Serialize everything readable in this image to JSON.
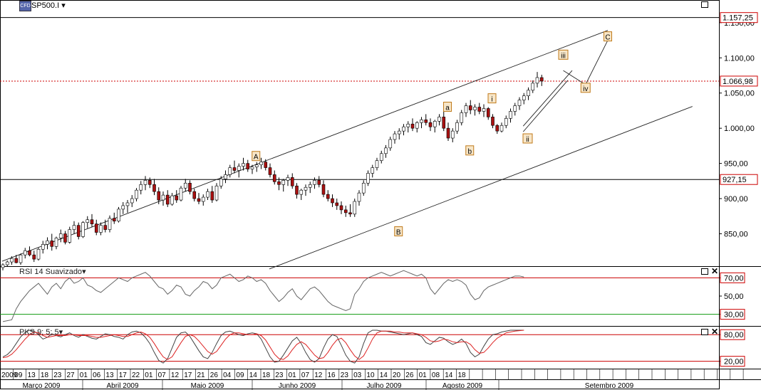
{
  "header": {
    "instrument": "SP500.I",
    "logo": "CFD",
    "dropdown_icon": "chevron-down-icon"
  },
  "indicators": {
    "rsi_title": "RSI 14 Suavizado",
    "pks_title": "PKS 9; 5; 5"
  },
  "price_labels": {
    "resistance": "1.157,25",
    "last": "1.066,98",
    "support": "927,15"
  },
  "colors": {
    "up": "#ffffff",
    "down": "#aa1111",
    "grid": "#000000",
    "last_line": "#cc0000",
    "rsi_line": "#666666",
    "pks_k": "#444444",
    "pks_d": "#dd2222",
    "label_bg": "#f7e6c8",
    "label_border": "#c07a1a"
  },
  "chart_data": [
    {
      "type": "candlestick",
      "title": "SP500.I",
      "y_ticks": [
        "850,00",
        "900,00",
        "950,00",
        "1.000,00",
        "1.050,00",
        "1.100,00",
        "1.150,00"
      ],
      "y_tick_values": [
        850,
        900,
        950,
        1000,
        1050,
        1100,
        1150
      ],
      "ylim": [
        805,
        1163
      ],
      "horizontal_levels": [
        1157.25,
        1066.98,
        927.15
      ],
      "last_price": 1066.98,
      "channel": {
        "upper": [
          [
            0,
            811
          ],
          [
            136,
            1139
          ]
        ],
        "lower": [
          [
            60,
            800
          ],
          [
            155,
            1031
          ]
        ],
        "wedge": [
          [
            117,
            995
          ],
          [
            127,
            1068
          ],
          [
            117,
            1003
          ],
          [
            128,
            1082
          ]
        ]
      },
      "wave_labels": [
        {
          "text": "A",
          "bar": 57,
          "price": 960
        },
        {
          "text": "B",
          "bar": 89,
          "price": 853
        },
        {
          "text": "a",
          "bar": 100,
          "price": 1030
        },
        {
          "text": "b",
          "bar": 105,
          "price": 968
        },
        {
          "text": "i",
          "bar": 110,
          "price": 1042
        },
        {
          "text": "ii",
          "bar": 118,
          "price": 985
        },
        {
          "text": "iii",
          "bar": 126,
          "price": 1104
        },
        {
          "text": "iv",
          "bar": 131,
          "price": 1057
        },
        {
          "text": "C",
          "bar": 136,
          "price": 1130
        }
      ],
      "projection": [
        [
          126,
          1082
        ],
        [
          131,
          1062
        ],
        [
          136,
          1125
        ]
      ],
      "candles": [
        [
          802,
          808,
          798,
          806
        ],
        [
          806,
          812,
          803,
          810
        ],
        [
          810,
          818,
          806,
          815
        ],
        [
          815,
          820,
          808,
          809
        ],
        [
          809,
          822,
          806,
          820
        ],
        [
          820,
          830,
          815,
          826
        ],
        [
          826,
          832,
          818,
          820
        ],
        [
          820,
          826,
          810,
          814
        ],
        [
          814,
          830,
          812,
          828
        ],
        [
          828,
          840,
          822,
          835
        ],
        [
          835,
          845,
          828,
          840
        ],
        [
          840,
          850,
          826,
          832
        ],
        [
          832,
          846,
          828,
          844
        ],
        [
          844,
          856,
          838,
          850
        ],
        [
          850,
          854,
          835,
          838
        ],
        [
          838,
          860,
          836,
          856
        ],
        [
          856,
          868,
          850,
          862
        ],
        [
          862,
          866,
          842,
          846
        ],
        [
          846,
          868,
          844,
          866
        ],
        [
          866,
          875,
          858,
          870
        ],
        [
          870,
          878,
          860,
          864
        ],
        [
          864,
          870,
          848,
          852
        ],
        [
          852,
          866,
          848,
          862
        ],
        [
          862,
          870,
          852,
          856
        ],
        [
          856,
          876,
          852,
          872
        ],
        [
          872,
          880,
          864,
          868
        ],
        [
          868,
          888,
          866,
          885
        ],
        [
          885,
          895,
          878,
          890
        ],
        [
          890,
          898,
          880,
          894
        ],
        [
          894,
          905,
          888,
          900
        ],
        [
          900,
          915,
          896,
          912
        ],
        [
          912,
          925,
          906,
          920
        ],
        [
          920,
          932,
          912,
          926
        ],
        [
          926,
          930,
          915,
          920
        ],
        [
          920,
          928,
          905,
          910
        ],
        [
          910,
          916,
          892,
          898
        ],
        [
          898,
          910,
          890,
          905
        ],
        [
          905,
          912,
          888,
          892
        ],
        [
          892,
          908,
          890,
          904
        ],
        [
          904,
          912,
          894,
          898
        ],
        [
          898,
          918,
          896,
          915
        ],
        [
          915,
          928,
          910,
          922
        ],
        [
          922,
          926,
          906,
          910
        ],
        [
          910,
          914,
          896,
          900
        ],
        [
          900,
          908,
          892,
          896
        ],
        [
          896,
          906,
          890,
          902
        ],
        [
          902,
          914,
          898,
          910
        ],
        [
          910,
          918,
          894,
          898
        ],
        [
          898,
          922,
          896,
          918
        ],
        [
          918,
          932,
          914,
          928
        ],
        [
          928,
          940,
          922,
          934
        ],
        [
          934,
          948,
          930,
          944
        ],
        [
          944,
          954,
          936,
          940
        ],
        [
          940,
          950,
          930,
          946
        ],
        [
          946,
          958,
          940,
          950
        ],
        [
          950,
          955,
          938,
          942
        ],
        [
          942,
          948,
          935,
          945
        ],
        [
          945,
          952,
          938,
          948
        ],
        [
          948,
          958,
          942,
          952
        ],
        [
          952,
          956,
          940,
          944
        ],
        [
          944,
          950,
          930,
          934
        ],
        [
          934,
          940,
          920,
          924
        ],
        [
          924,
          930,
          912,
          920
        ],
        [
          920,
          928,
          910,
          926
        ],
        [
          926,
          934,
          918,
          930
        ],
        [
          930,
          936,
          914,
          918
        ],
        [
          918,
          922,
          900,
          906
        ],
        [
          906,
          914,
          898,
          912
        ],
        [
          912,
          920,
          904,
          916
        ],
        [
          916,
          924,
          908,
          920
        ],
        [
          920,
          930,
          914,
          926
        ],
        [
          926,
          932,
          916,
          920
        ],
        [
          920,
          926,
          902,
          906
        ],
        [
          906,
          912,
          896,
          900
        ],
        [
          900,
          906,
          888,
          894
        ],
        [
          894,
          900,
          884,
          890
        ],
        [
          890,
          896,
          878,
          884
        ],
        [
          884,
          890,
          874,
          880
        ],
        [
          880,
          892,
          874,
          878
        ],
        [
          878,
          900,
          874,
          896
        ],
        [
          896,
          912,
          890,
          908
        ],
        [
          908,
          926,
          904,
          922
        ],
        [
          922,
          940,
          918,
          936
        ],
        [
          936,
          948,
          930,
          944
        ],
        [
          944,
          958,
          940,
          954
        ],
        [
          954,
          968,
          950,
          964
        ],
        [
          964,
          976,
          958,
          972
        ],
        [
          972,
          988,
          968,
          984
        ],
        [
          984,
          996,
          978,
          992
        ],
        [
          992,
          1000,
          984,
          996
        ],
        [
          996,
          1006,
          990,
          1002
        ],
        [
          1002,
          1010,
          994,
          1006
        ],
        [
          1006,
          1014,
          996,
          1000
        ],
        [
          1000,
          1010,
          994,
          1008
        ],
        [
          1008,
          1016,
          1000,
          1012
        ],
        [
          1012,
          1020,
          1004,
          1008
        ],
        [
          1008,
          1014,
          996,
          1002
        ],
        [
          1002,
          1012,
          994,
          1010
        ],
        [
          1010,
          1020,
          1004,
          1016
        ],
        [
          1016,
          1024,
          996,
          1000
        ],
        [
          1000,
          1008,
          982,
          986
        ],
        [
          986,
          1000,
          980,
          996
        ],
        [
          996,
          1012,
          992,
          1008
        ],
        [
          1008,
          1026,
          1004,
          1022
        ],
        [
          1022,
          1036,
          1016,
          1032
        ],
        [
          1032,
          1040,
          1020,
          1026
        ],
        [
          1026,
          1034,
          1018,
          1030
        ],
        [
          1030,
          1036,
          1020,
          1024
        ],
        [
          1024,
          1034,
          1016,
          1028
        ],
        [
          1028,
          1030,
          1012,
          1016
        ],
        [
          1016,
          1020,
          1000,
          1004
        ],
        [
          1004,
          1006,
          992,
          996
        ],
        [
          996,
          1008,
          994,
          1004
        ],
        [
          1004,
          1018,
          1000,
          1014
        ],
        [
          1014,
          1028,
          1008,
          1024
        ],
        [
          1024,
          1036,
          1018,
          1032
        ],
        [
          1032,
          1044,
          1026,
          1040
        ],
        [
          1040,
          1050,
          1034,
          1046
        ],
        [
          1046,
          1058,
          1040,
          1054
        ],
        [
          1054,
          1068,
          1050,
          1064
        ],
        [
          1064,
          1080,
          1058,
          1072
        ],
        [
          1072,
          1076,
          1060,
          1067
        ]
      ],
      "x_day_labels": [
        "2009",
        "09",
        "13",
        "18",
        "23",
        "27",
        "01",
        "06",
        "13",
        "17",
        "22",
        "01",
        "07",
        "12",
        "17",
        "21",
        "26",
        "04",
        "09",
        "14",
        "18",
        "23",
        "01",
        "07",
        "12",
        "16",
        "23",
        "03",
        "10",
        "14",
        "20",
        "26",
        "01",
        "08",
        "14",
        "18"
      ],
      "x_month_labels": [
        "Março 2009",
        "Abril 2009",
        "Maio 2009",
        "Junho 2009",
        "Julho 2009",
        "Agosto 2009",
        "Setembro 2009"
      ]
    },
    {
      "type": "line",
      "title": "RSI 14 Suavizado",
      "y_ticks": [
        "30,00",
        "50,00",
        "70,00"
      ],
      "y_tick_values": [
        30,
        50,
        70
      ],
      "ylim": [
        18,
        82
      ],
      "levels": [
        {
          "value": 70,
          "color": "#cc0000"
        },
        {
          "value": 30,
          "color": "#119911"
        }
      ],
      "values": [
        22,
        23,
        24,
        36,
        44,
        50,
        56,
        60,
        64,
        58,
        52,
        60,
        64,
        58,
        66,
        70,
        64,
        66,
        70,
        62,
        60,
        56,
        54,
        58,
        62,
        66,
        70,
        68,
        66,
        70,
        72,
        74,
        76,
        72,
        66,
        60,
        58,
        52,
        56,
        62,
        60,
        52,
        50,
        56,
        60,
        66,
        64,
        58,
        62,
        70,
        72,
        74,
        70,
        66,
        68,
        72,
        70,
        66,
        68,
        64,
        56,
        50,
        44,
        48,
        54,
        58,
        50,
        46,
        52,
        58,
        60,
        56,
        50,
        44,
        40,
        38,
        36,
        34,
        36,
        52,
        58,
        66,
        70,
        72,
        74,
        76,
        74,
        72,
        74,
        76,
        78,
        76,
        74,
        72,
        74,
        70,
        58,
        52,
        58,
        64,
        68,
        66,
        68,
        66,
        62,
        52,
        46,
        48,
        56,
        60,
        62,
        64,
        66,
        68,
        70,
        72,
        72,
        71
      ]
    },
    {
      "type": "line",
      "title": "PKS 9; 5; 5",
      "y_ticks": [
        "20,00",
        "80,00"
      ],
      "y_tick_values": [
        20,
        80
      ],
      "ylim": [
        5,
        98
      ],
      "levels": [
        {
          "value": 80,
          "color": "#cc0000"
        },
        {
          "value": 20,
          "color": "#cc0000"
        }
      ],
      "series": [
        {
          "values": [
            30,
            35,
            45,
            60,
            75,
            85,
            90,
            88,
            80,
            70,
            74,
            82,
            78,
            75,
            80,
            84,
            78,
            74,
            80,
            76,
            72,
            70,
            76,
            82,
            80,
            76,
            74,
            70,
            80,
            86,
            88,
            84,
            74,
            60,
            40,
            22,
            16,
            26,
            50,
            74,
            84,
            86,
            76,
            60,
            44,
            30,
            26,
            40,
            60,
            78,
            86,
            88,
            84,
            80,
            78,
            82,
            84,
            82,
            70,
            50,
            30,
            18,
            20,
            34,
            50,
            66,
            74,
            60,
            40,
            24,
            18,
            26,
            50,
            70,
            80,
            76,
            56,
            34,
            20,
            16,
            30,
            60,
            84,
            90,
            90,
            88,
            88,
            86,
            84,
            82,
            80,
            82,
            84,
            80,
            76,
            62,
            58,
            66,
            74,
            72,
            64,
            58,
            62,
            70,
            60,
            40,
            30,
            36,
            54,
            70,
            80,
            82,
            86,
            88,
            90,
            90,
            90,
            90
          ]
        },
        {
          "values": [
            28,
            30,
            36,
            46,
            58,
            70,
            80,
            86,
            84,
            78,
            74,
            76,
            78,
            78,
            78,
            80,
            80,
            78,
            78,
            78,
            76,
            74,
            74,
            76,
            78,
            80,
            78,
            76,
            76,
            80,
            84,
            86,
            82,
            74,
            60,
            44,
            30,
            24,
            30,
            46,
            62,
            76,
            80,
            76,
            66,
            54,
            42,
            36,
            42,
            56,
            70,
            80,
            84,
            84,
            82,
            80,
            80,
            82,
            78,
            68,
            52,
            36,
            26,
            24,
            32,
            46,
            58,
            64,
            58,
            46,
            34,
            26,
            28,
            40,
            56,
            68,
            72,
            62,
            46,
            32,
            24,
            32,
            50,
            70,
            84,
            88,
            88,
            88,
            86,
            86,
            84,
            84,
            84,
            82,
            80,
            74,
            66,
            64,
            66,
            70,
            68,
            64,
            62,
            64,
            64,
            58,
            46,
            38,
            40,
            50,
            62,
            72,
            78,
            84,
            86,
            88,
            89,
            90
          ]
        }
      ]
    }
  ]
}
